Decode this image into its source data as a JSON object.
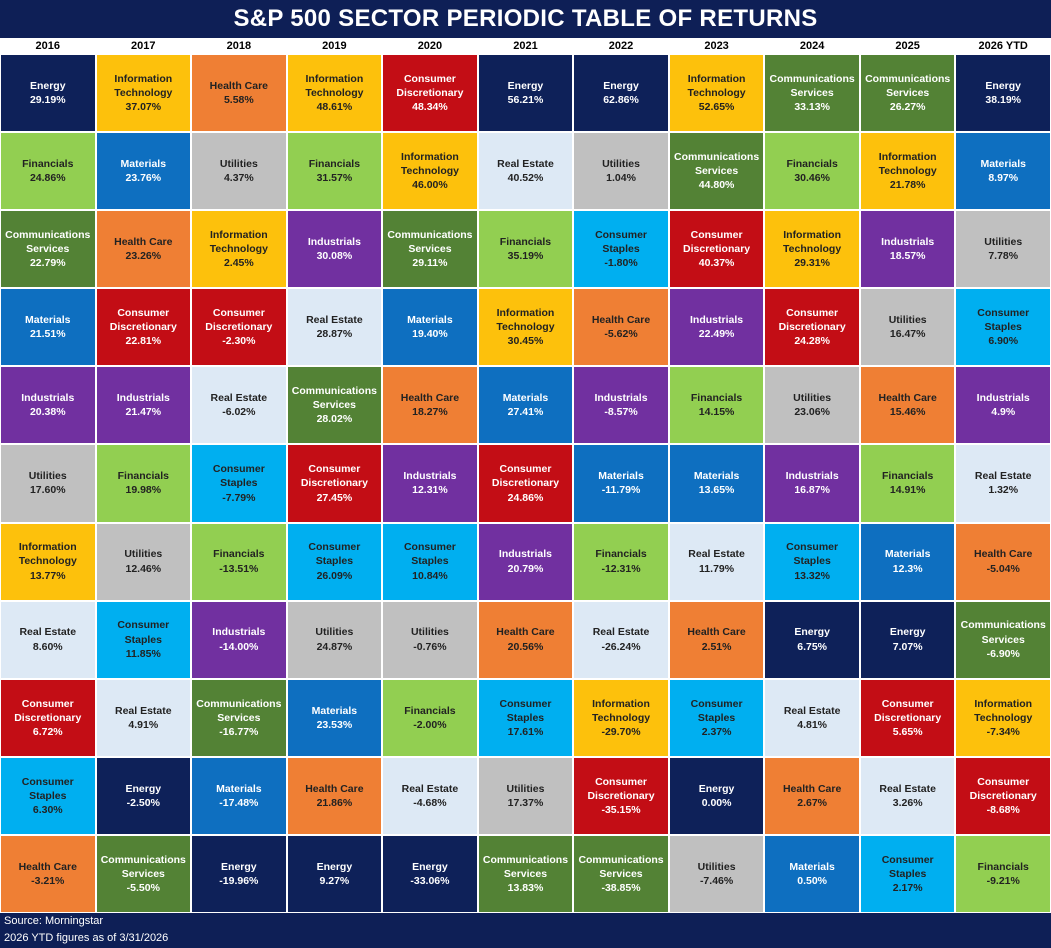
{
  "title": "S&P 500 SECTOR PERIODIC TABLE OF RETURNS",
  "footer": {
    "source": "Source: Morningstar",
    "note": "2026 YTD figures as of 3/31/2026"
  },
  "colors": {
    "Energy": {
      "bg": "#0e2159",
      "fg": "#ffffff"
    },
    "Information Technology": {
      "bg": "#fdc10c",
      "fg": "#222222"
    },
    "Health Care": {
      "bg": "#ef7f34",
      "fg": "#222222"
    },
    "Consumer Discretionary": {
      "bg": "#c30d15",
      "fg": "#ffffff"
    },
    "Communications Services": {
      "bg": "#538235",
      "fg": "#ffffff"
    },
    "Financials": {
      "bg": "#92cf51",
      "fg": "#222222"
    },
    "Materials": {
      "bg": "#0e6fc0",
      "fg": "#ffffff"
    },
    "Utilities": {
      "bg": "#c0c0c0",
      "fg": "#222222"
    },
    "Real Estate": {
      "bg": "#dde9f5",
      "fg": "#222222"
    },
    "Industrials": {
      "bg": "#7130a0",
      "fg": "#ffffff"
    },
    "Consumer Staples": {
      "bg": "#00aff0",
      "fg": "#222222"
    }
  },
  "chart_data": {
    "type": "table",
    "title": "S&P 500 SECTOR PERIODIC TABLE OF RETURNS",
    "columns": [
      "2016",
      "2017",
      "2018",
      "2019",
      "2020",
      "2021",
      "2022",
      "2023",
      "2024",
      "2025",
      "2026 YTD"
    ],
    "series": [
      {
        "year": "2016",
        "cells": [
          {
            "sector": "Energy",
            "ret": "29.19%"
          },
          {
            "sector": "Financials",
            "ret": "24.86%"
          },
          {
            "sector": "Communications Services",
            "ret": "22.79%"
          },
          {
            "sector": "Materials",
            "ret": "21.51%"
          },
          {
            "sector": "Industrials",
            "ret": "20.38%"
          },
          {
            "sector": "Utilities",
            "ret": "17.60%"
          },
          {
            "sector": "Information Technology",
            "ret": "13.77%"
          },
          {
            "sector": "Real Estate",
            "ret": "8.60%"
          },
          {
            "sector": "Consumer Discretionary",
            "ret": "6.72%"
          },
          {
            "sector": "Consumer Staples",
            "ret": "6.30%"
          },
          {
            "sector": "Health Care",
            "ret": "-3.21%"
          }
        ]
      },
      {
        "year": "2017",
        "cells": [
          {
            "sector": "Information Technology",
            "ret": "37.07%"
          },
          {
            "sector": "Materials",
            "ret": "23.76%"
          },
          {
            "sector": "Health Care",
            "ret": "23.26%"
          },
          {
            "sector": "Consumer Discretionary",
            "ret": "22.81%"
          },
          {
            "sector": "Industrials",
            "ret": "21.47%"
          },
          {
            "sector": "Financials",
            "ret": "19.98%"
          },
          {
            "sector": "Utilities",
            "ret": "12.46%"
          },
          {
            "sector": "Consumer Staples",
            "ret": "11.85%"
          },
          {
            "sector": "Real Estate",
            "ret": "4.91%"
          },
          {
            "sector": "Energy",
            "ret": "-2.50%"
          },
          {
            "sector": "Communications Services",
            "ret": "-5.50%"
          }
        ]
      },
      {
        "year": "2018",
        "cells": [
          {
            "sector": "Health Care",
            "ret": "5.58%"
          },
          {
            "sector": "Utilities",
            "ret": "4.37%"
          },
          {
            "sector": "Information Technology",
            "ret": "2.45%"
          },
          {
            "sector": "Consumer Discretionary",
            "ret": "-2.30%"
          },
          {
            "sector": "Real Estate",
            "ret": "-6.02%"
          },
          {
            "sector": "Consumer Staples",
            "ret": "-7.79%"
          },
          {
            "sector": "Financials",
            "ret": "-13.51%"
          },
          {
            "sector": "Industrials",
            "ret": "-14.00%"
          },
          {
            "sector": "Communications Services",
            "ret": "-16.77%"
          },
          {
            "sector": "Materials",
            "ret": "-17.48%"
          },
          {
            "sector": "Energy",
            "ret": "-19.96%"
          }
        ]
      },
      {
        "year": "2019",
        "cells": [
          {
            "sector": "Information Technology",
            "ret": "48.61%"
          },
          {
            "sector": "Financials",
            "ret": "31.57%"
          },
          {
            "sector": "Industrials",
            "ret": "30.08%"
          },
          {
            "sector": "Real Estate",
            "ret": "28.87%"
          },
          {
            "sector": "Communications Services",
            "ret": "28.02%"
          },
          {
            "sector": "Consumer Discretionary",
            "ret": "27.45%"
          },
          {
            "sector": "Consumer Staples",
            "ret": "26.09%"
          },
          {
            "sector": "Utilities",
            "ret": "24.87%"
          },
          {
            "sector": "Materials",
            "ret": "23.53%"
          },
          {
            "sector": "Health Care",
            "ret": "21.86%"
          },
          {
            "sector": "Energy",
            "ret": "9.27%"
          }
        ]
      },
      {
        "year": "2020",
        "cells": [
          {
            "sector": "Consumer Discretionary",
            "ret": "48.34%"
          },
          {
            "sector": "Information Technology",
            "ret": "46.00%"
          },
          {
            "sector": "Communications Services",
            "ret": "29.11%"
          },
          {
            "sector": "Materials",
            "ret": "19.40%"
          },
          {
            "sector": "Health Care",
            "ret": "18.27%"
          },
          {
            "sector": "Industrials",
            "ret": "12.31%"
          },
          {
            "sector": "Consumer Staples",
            "ret": "10.84%"
          },
          {
            "sector": "Utilities",
            "ret": "-0.76%"
          },
          {
            "sector": "Financials",
            "ret": "-2.00%"
          },
          {
            "sector": "Real Estate",
            "ret": "-4.68%"
          },
          {
            "sector": "Energy",
            "ret": "-33.06%"
          }
        ]
      },
      {
        "year": "2021",
        "cells": [
          {
            "sector": "Energy",
            "ret": "56.21%"
          },
          {
            "sector": "Real Estate",
            "ret": "40.52%"
          },
          {
            "sector": "Financials",
            "ret": "35.19%"
          },
          {
            "sector": "Information Technology",
            "ret": "30.45%"
          },
          {
            "sector": "Materials",
            "ret": "27.41%"
          },
          {
            "sector": "Consumer Discretionary",
            "ret": "24.86%"
          },
          {
            "sector": "Industrials",
            "ret": "20.79%"
          },
          {
            "sector": "Health Care",
            "ret": "20.56%"
          },
          {
            "sector": "Consumer Staples",
            "ret": "17.61%"
          },
          {
            "sector": "Utilities",
            "ret": "17.37%"
          },
          {
            "sector": "Communications Services",
            "ret": "13.83%"
          }
        ]
      },
      {
        "year": "2022",
        "cells": [
          {
            "sector": "Energy",
            "ret": "62.86%"
          },
          {
            "sector": "Utilities",
            "ret": "1.04%"
          },
          {
            "sector": "Consumer Staples",
            "ret": "-1.80%"
          },
          {
            "sector": "Health Care",
            "ret": "-5.62%"
          },
          {
            "sector": "Industrials",
            "ret": "-8.57%"
          },
          {
            "sector": "Materials",
            "ret": "-11.79%"
          },
          {
            "sector": "Financials",
            "ret": "-12.31%"
          },
          {
            "sector": "Real Estate",
            "ret": "-26.24%"
          },
          {
            "sector": "Information Technology",
            "ret": "-29.70%"
          },
          {
            "sector": "Consumer Discretionary",
            "ret": "-35.15%"
          },
          {
            "sector": "Communications Services",
            "ret": "-38.85%"
          }
        ]
      },
      {
        "year": "2023",
        "cells": [
          {
            "sector": "Information Technology",
            "ret": "52.65%"
          },
          {
            "sector": "Communications Services",
            "ret": "44.80%"
          },
          {
            "sector": "Consumer Discretionary",
            "ret": "40.37%"
          },
          {
            "sector": "Industrials",
            "ret": "22.49%"
          },
          {
            "sector": "Financials",
            "ret": "14.15%"
          },
          {
            "sector": "Materials",
            "ret": "13.65%"
          },
          {
            "sector": "Real Estate",
            "ret": "11.79%"
          },
          {
            "sector": "Health Care",
            "ret": "2.51%"
          },
          {
            "sector": "Consumer Staples",
            "ret": "2.37%"
          },
          {
            "sector": "Energy",
            "ret": "0.00%"
          },
          {
            "sector": "Utilities",
            "ret": "-7.46%"
          }
        ]
      },
      {
        "year": "2024",
        "cells": [
          {
            "sector": "Communications Services",
            "ret": "33.13%"
          },
          {
            "sector": "Financials",
            "ret": "30.46%"
          },
          {
            "sector": "Information Technology",
            "ret": "29.31%"
          },
          {
            "sector": "Consumer Discretionary",
            "ret": "24.28%"
          },
          {
            "sector": "Utilities",
            "ret": "23.06%"
          },
          {
            "sector": "Industrials",
            "ret": "16.87%"
          },
          {
            "sector": "Consumer Staples",
            "ret": "13.32%"
          },
          {
            "sector": "Energy",
            "ret": "6.75%"
          },
          {
            "sector": "Real Estate",
            "ret": "4.81%"
          },
          {
            "sector": "Health Care",
            "ret": "2.67%"
          },
          {
            "sector": "Materials",
            "ret": "0.50%"
          }
        ]
      },
      {
        "year": "2025",
        "cells": [
          {
            "sector": "Communications Services",
            "ret": "26.27%"
          },
          {
            "sector": "Information Technology",
            "ret": "21.78%"
          },
          {
            "sector": "Industrials",
            "ret": "18.57%"
          },
          {
            "sector": "Utilities",
            "ret": "16.47%"
          },
          {
            "sector": "Health Care",
            "ret": "15.46%"
          },
          {
            "sector": "Financials",
            "ret": "14.91%"
          },
          {
            "sector": "Materials",
            "ret": "12.3%"
          },
          {
            "sector": "Energy",
            "ret": "7.07%"
          },
          {
            "sector": "Consumer Discretionary",
            "ret": "5.65%"
          },
          {
            "sector": "Real Estate",
            "ret": "3.26%"
          },
          {
            "sector": "Consumer Staples",
            "ret": "2.17%"
          }
        ]
      },
      {
        "year": "2026 YTD",
        "cells": [
          {
            "sector": "Energy",
            "ret": "38.19%"
          },
          {
            "sector": "Materials",
            "ret": "8.97%"
          },
          {
            "sector": "Utilities",
            "ret": "7.78%"
          },
          {
            "sector": "Consumer Staples",
            "ret": "6.90%"
          },
          {
            "sector": "Industrials",
            "ret": "4.9%"
          },
          {
            "sector": "Real Estate",
            "ret": "1.32%"
          },
          {
            "sector": "Health Care",
            "ret": "-5.04%"
          },
          {
            "sector": "Communications Services",
            "ret": "-6.90%"
          },
          {
            "sector": "Information Technology",
            "ret": "-7.34%"
          },
          {
            "sector": "Consumer Discretionary",
            "ret": "-8.68%"
          },
          {
            "sector": "Financials",
            "ret": "-9.21%"
          }
        ]
      }
    ]
  }
}
